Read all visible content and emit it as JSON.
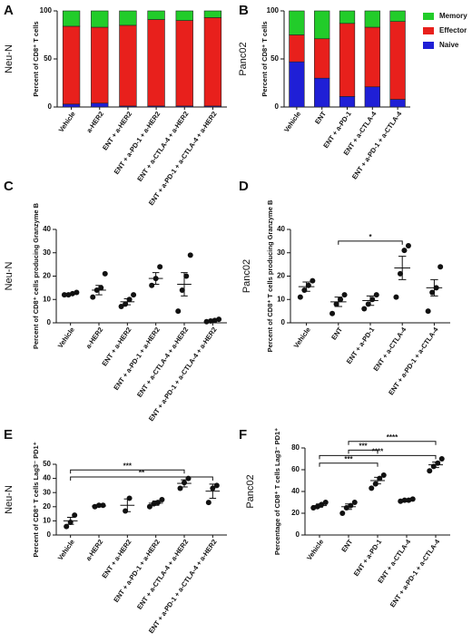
{
  "chart_data": [
    {
      "type": "stacked_bar",
      "panel": "A",
      "side_label": "Neu-N",
      "ylabel": "Percent of CD8⁺ T cells",
      "categories": [
        "Vehicle",
        "a-HER2",
        "ENT + a-HER2",
        "ENT + a-PD-1 + a-HER2",
        "ENT + a-CTLA-4 + a-HER2",
        "ENT + a-PD-1 + a-CTLA-4 + a-HER2"
      ],
      "series": [
        {
          "name": "Naive",
          "color": "#1f1fd6",
          "values": [
            3,
            4,
            1,
            1,
            1,
            1
          ]
        },
        {
          "name": "Effector",
          "color": "#e8201c",
          "values": [
            81,
            79,
            84,
            90,
            89,
            92
          ]
        },
        {
          "name": "Memory",
          "color": "#22cc2a",
          "values": [
            16,
            17,
            15,
            9,
            10,
            7
          ]
        }
      ],
      "ylim": [
        0,
        100
      ],
      "yticks": [
        0,
        50,
        100
      ],
      "legend": false
    },
    {
      "type": "stacked_bar",
      "panel": "B",
      "side_label": "Panc02",
      "ylabel": "Percent of CD8⁺ T cells",
      "categories": [
        "Vehicle",
        "ENT",
        "ENT + a-PD-1",
        "ENT + a-CTLA-4",
        "ENT + a-PD-1 + a-CTLA-4"
      ],
      "series": [
        {
          "name": "Naive",
          "color": "#1f1fd6",
          "values": [
            47,
            30,
            11,
            21,
            8
          ]
        },
        {
          "name": "Effector",
          "color": "#e8201c",
          "values": [
            28,
            41,
            76,
            62,
            81
          ]
        },
        {
          "name": "Memory",
          "color": "#22cc2a",
          "values": [
            25,
            29,
            13,
            17,
            11
          ]
        }
      ],
      "ylim": [
        0,
        100
      ],
      "yticks": [
        0,
        50,
        100
      ],
      "legend": "right"
    },
    {
      "type": "dot",
      "panel": "C",
      "side_label": "Neu-N",
      "ylabel": "Percent of CD8⁺ cells producing Granzyme B",
      "categories": [
        "Vehicle",
        "a-HER2",
        "ENT + a-HER2",
        "ENT + a-PD-1 + a-HER2",
        "ENT + a-CTLA-4 + a-HER2",
        "ENT + a-PD-1 + a-CTLA-4 + a-HER2"
      ],
      "groups": [
        {
          "points": [
            12,
            12,
            12.5,
            13
          ],
          "mean": 12.5,
          "sem": 0.3
        },
        {
          "points": [
            11,
            14,
            15,
            21
          ],
          "mean": 14,
          "sem": 2
        },
        {
          "points": [
            7,
            8,
            10,
            12
          ],
          "mean": 9,
          "sem": 1.3
        },
        {
          "points": [
            16,
            19,
            24
          ],
          "mean": 19,
          "sem": 2.5
        },
        {
          "points": [
            5,
            14,
            20,
            29
          ],
          "mean": 16.5,
          "sem": 5
        },
        {
          "points": [
            0.5,
            0.8,
            1,
            1.5
          ],
          "mean": 1,
          "sem": 0.3
        }
      ],
      "significance": [],
      "color": "#111111",
      "ylim": [
        0,
        40
      ],
      "yticks": [
        0,
        10,
        20,
        30,
        40
      ]
    },
    {
      "type": "dot",
      "panel": "D",
      "side_label": "Panc02",
      "ylabel": "Percent of CD8⁺ T cells producing Granzyme B",
      "categories": [
        "Vehicle",
        "ENT",
        "ENT + a-PD-1",
        "ENT + a-CTLA-4",
        "ENT + a-PD-1 + a-CTLA-4"
      ],
      "groups": [
        {
          "points": [
            11,
            14,
            16,
            18
          ],
          "mean": 15.5,
          "sem": 2
        },
        {
          "points": [
            4,
            8,
            10,
            12
          ],
          "mean": 9,
          "sem": 2
        },
        {
          "points": [
            6,
            8,
            10,
            12
          ],
          "mean": 9.5,
          "sem": 2
        },
        {
          "points": [
            11,
            21,
            31,
            33
          ],
          "mean": 23.5,
          "sem": 5
        },
        {
          "points": [
            5,
            13,
            15,
            24
          ],
          "mean": 15,
          "sem": 3.5
        }
      ],
      "significance": [
        {
          "from": 1,
          "to": 3,
          "y": 35,
          "label": "*"
        }
      ],
      "color": "#111111",
      "ylim": [
        0,
        40
      ],
      "yticks": [
        0,
        10,
        20,
        30,
        40
      ]
    },
    {
      "type": "dot",
      "panel": "E",
      "side_label": "Neu-N",
      "ylabel": "Percent of CD8⁺ T cells Lag3⁻ PD1⁺",
      "categories": [
        "Vehicle",
        "a-HER2",
        "ENT + a-HER2",
        "ENT + a-PD-1 + a-HER2",
        "ENT + a-CTLA-4 + a-HER2",
        "ENT + a-PD-1 + a-CTLA-4 + a-HER2"
      ],
      "groups": [
        {
          "points": [
            6,
            9,
            14
          ],
          "mean": 10,
          "sem": 2.5
        },
        {
          "points": [
            20,
            21,
            21
          ],
          "mean": 20.5,
          "sem": 0.5
        },
        {
          "points": [
            17,
            26
          ],
          "mean": 21,
          "sem": 4.5
        },
        {
          "points": [
            20,
            22,
            23,
            25
          ],
          "mean": 22.5,
          "sem": 1.5
        },
        {
          "points": [
            33,
            37,
            40
          ],
          "mean": 36.5,
          "sem": 2.5
        },
        {
          "points": [
            23,
            33,
            35
          ],
          "mean": 31,
          "sem": 5
        }
      ],
      "significance": [
        {
          "from": 0,
          "to": 4,
          "y": 46,
          "label": "***"
        },
        {
          "from": 0,
          "to": 5,
          "y": 41,
          "label": "**"
        }
      ],
      "color": "#111111",
      "ylim": [
        0,
        50
      ],
      "yticks": [
        0,
        10,
        20,
        30,
        40,
        50
      ]
    },
    {
      "type": "dot",
      "panel": "F",
      "side_label": "Panc02",
      "ylabel": "Percentage of CD8⁺ T cells Lag3⁻ PD1⁺",
      "categories": [
        "Vehicle",
        "ENT",
        "ENT + a-PD-1",
        "ENT + a-CTLA-4",
        "ENT + a-PD-1 + a-CTLA-4"
      ],
      "groups": [
        {
          "points": [
            25,
            26,
            28,
            30
          ],
          "mean": 27,
          "sem": 1.5
        },
        {
          "points": [
            20,
            25,
            27,
            30
          ],
          "mean": 26,
          "sem": 2.5
        },
        {
          "points": [
            43,
            47,
            52,
            55
          ],
          "mean": 50,
          "sem": 3
        },
        {
          "points": [
            31,
            32,
            32,
            33
          ],
          "mean": 32,
          "sem": 0.5
        },
        {
          "points": [
            59,
            63,
            66,
            70
          ],
          "mean": 64.5,
          "sem": 2.5
        }
      ],
      "significance": [
        {
          "from": 1,
          "to": 4,
          "y": 86,
          "label": "****"
        },
        {
          "from": 1,
          "to": 2,
          "y": 78,
          "label": "***"
        },
        {
          "from": 0,
          "to": 4,
          "y": 73,
          "label": "****"
        },
        {
          "from": 0,
          "to": 2,
          "y": 66,
          "label": "***"
        }
      ],
      "color": "#111111",
      "ylim": [
        0,
        80
      ],
      "yticks": [
        0,
        20,
        40,
        60,
        80
      ]
    }
  ]
}
